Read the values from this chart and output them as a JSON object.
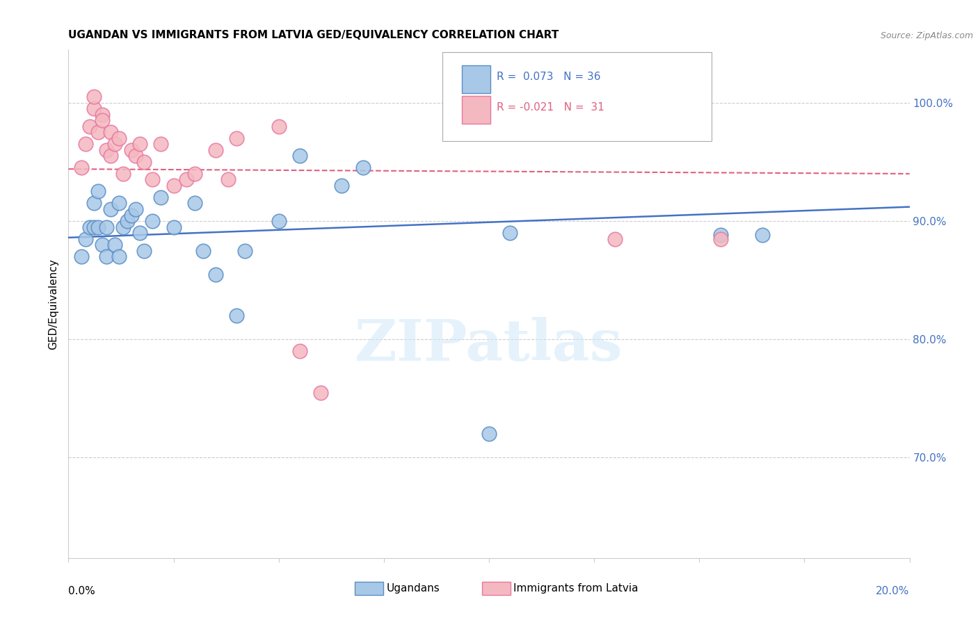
{
  "title": "UGANDAN VS IMMIGRANTS FROM LATVIA GED/EQUIVALENCY CORRELATION CHART",
  "source": "Source: ZipAtlas.com",
  "ylabel": "GED/Equivalency",
  "watermark": "ZIPatlas",
  "legend_blue_R": "0.073",
  "legend_blue_N": "36",
  "legend_pink_R": "-0.021",
  "legend_pink_N": "31",
  "legend_blue_label": "Ugandans",
  "legend_pink_label": "Immigrants from Latvia",
  "ytick_labels": [
    "100.0%",
    "90.0%",
    "80.0%",
    "70.0%"
  ],
  "ytick_values": [
    1.0,
    0.9,
    0.8,
    0.7
  ],
  "xlim": [
    0.0,
    0.2
  ],
  "ylim": [
    0.615,
    1.045
  ],
  "blue_color": "#a8c8e8",
  "pink_color": "#f4b8c0",
  "blue_edge_color": "#5b8ec4",
  "pink_edge_color": "#e878a0",
  "blue_line_color": "#4472c4",
  "pink_line_color": "#e06080",
  "blue_scatter_x": [
    0.003,
    0.004,
    0.005,
    0.006,
    0.006,
    0.007,
    0.007,
    0.008,
    0.009,
    0.009,
    0.01,
    0.011,
    0.012,
    0.012,
    0.013,
    0.014,
    0.015,
    0.016,
    0.017,
    0.018,
    0.02,
    0.022,
    0.025,
    0.03,
    0.032,
    0.035,
    0.04,
    0.042,
    0.05,
    0.055,
    0.065,
    0.07,
    0.1,
    0.105,
    0.155,
    0.165
  ],
  "blue_scatter_y": [
    0.87,
    0.885,
    0.895,
    0.895,
    0.915,
    0.925,
    0.895,
    0.88,
    0.895,
    0.87,
    0.91,
    0.88,
    0.915,
    0.87,
    0.895,
    0.9,
    0.905,
    0.91,
    0.89,
    0.875,
    0.9,
    0.92,
    0.895,
    0.915,
    0.875,
    0.855,
    0.82,
    0.875,
    0.9,
    0.955,
    0.93,
    0.945,
    0.72,
    0.89,
    0.888,
    0.888
  ],
  "pink_scatter_x": [
    0.003,
    0.004,
    0.005,
    0.006,
    0.006,
    0.007,
    0.008,
    0.008,
    0.009,
    0.01,
    0.01,
    0.011,
    0.012,
    0.013,
    0.015,
    0.016,
    0.017,
    0.018,
    0.02,
    0.022,
    0.025,
    0.028,
    0.03,
    0.035,
    0.038,
    0.04,
    0.05,
    0.055,
    0.06,
    0.13,
    0.155
  ],
  "pink_scatter_y": [
    0.945,
    0.965,
    0.98,
    0.995,
    1.005,
    0.975,
    0.99,
    0.985,
    0.96,
    0.975,
    0.955,
    0.965,
    0.97,
    0.94,
    0.96,
    0.955,
    0.965,
    0.95,
    0.935,
    0.965,
    0.93,
    0.935,
    0.94,
    0.96,
    0.935,
    0.97,
    0.98,
    0.79,
    0.755,
    0.885,
    0.885
  ],
  "blue_trend_x": [
    0.0,
    0.2
  ],
  "blue_trend_y": [
    0.886,
    0.912
  ],
  "pink_trend_x": [
    0.0,
    0.2
  ],
  "pink_trend_y": [
    0.944,
    0.94
  ],
  "grid_color": "#cccccc",
  "spine_color": "#cccccc"
}
